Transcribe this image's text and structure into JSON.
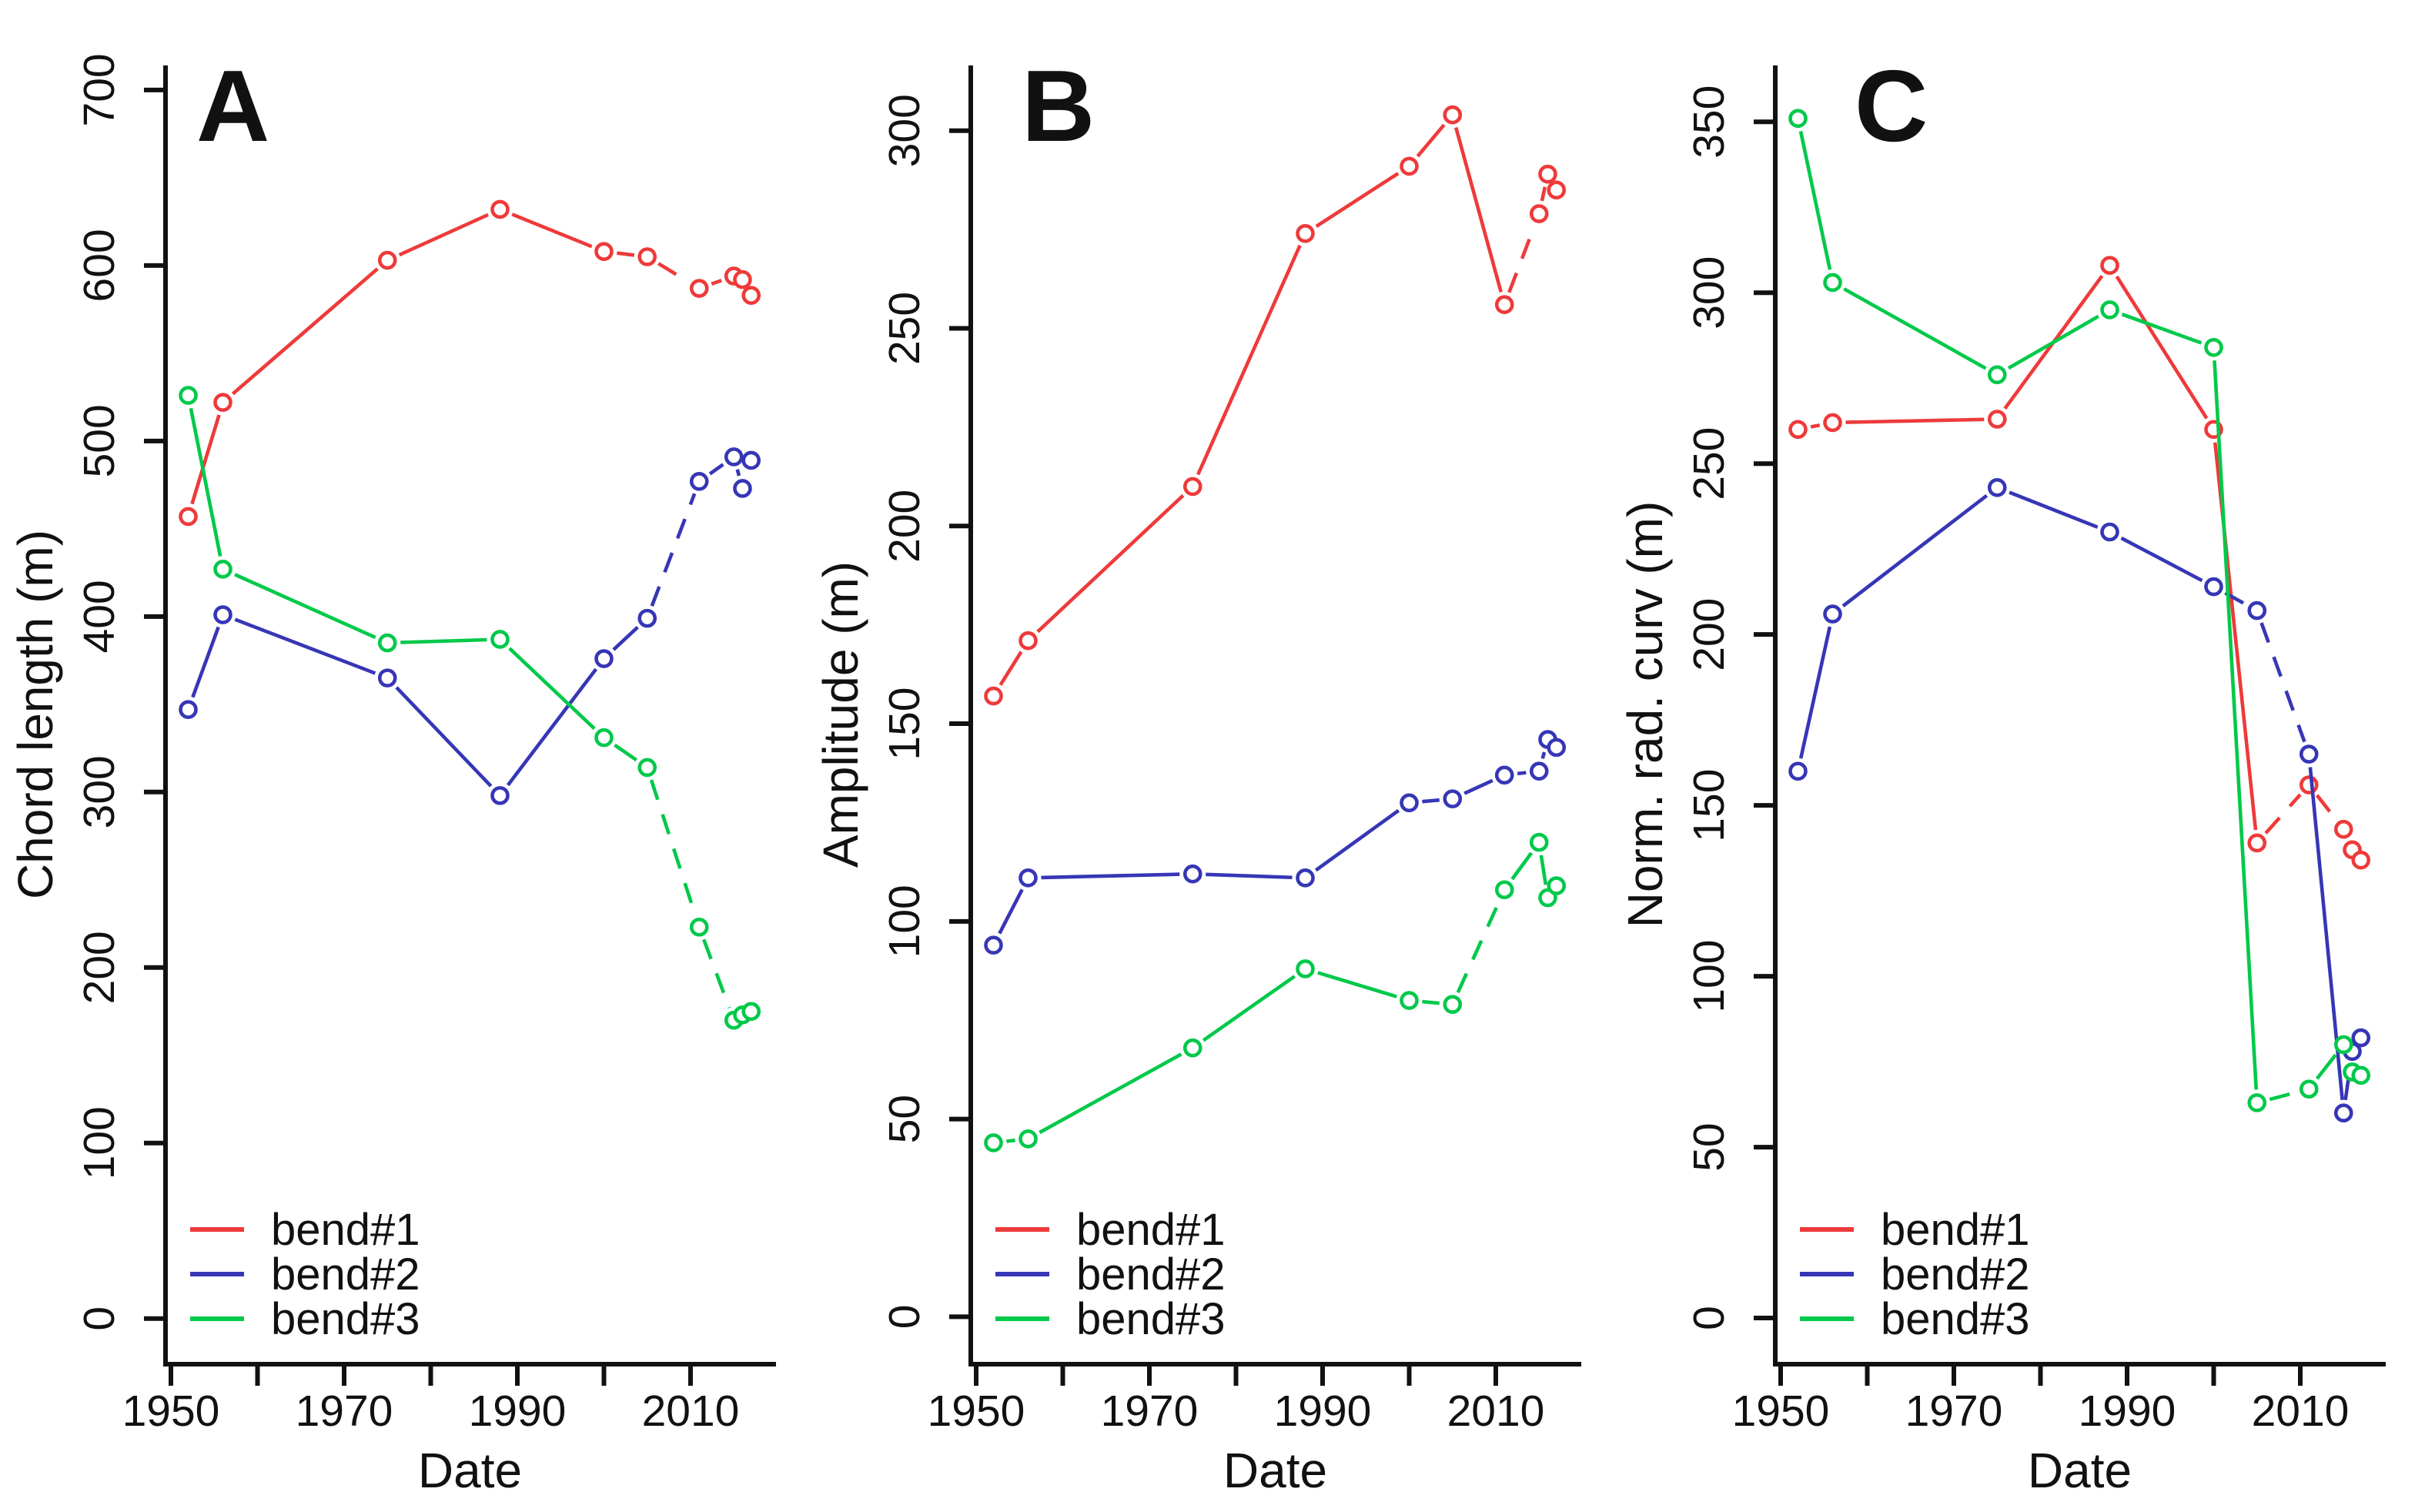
{
  "figure": {
    "background": "#ffffff",
    "text_color": "#111111",
    "panel_count": 3
  },
  "colors": {
    "red": "#ee3a3a",
    "blue": "#3636b6",
    "green": "#00c94a",
    "axis": "#111111"
  },
  "legend": {
    "entries": [
      {
        "label": "bend#1",
        "color": "red"
      },
      {
        "label": "bend#2",
        "color": "blue"
      },
      {
        "label": "bend#3",
        "color": "green"
      }
    ],
    "position": "bottom-left"
  },
  "x_axis": {
    "label": "Date",
    "tick_years": [
      1950,
      1960,
      1970,
      1980,
      1990,
      2000,
      2010
    ],
    "labeled_years": [
      1950,
      1970,
      1990,
      2010
    ]
  },
  "chart_data": [
    {
      "type": "line",
      "panel_label": "A",
      "letter_x": 255,
      "xlabel": "Date",
      "ylabel": "Chord length (m)",
      "x": [
        1952,
        1956,
        1975,
        1988,
        2000,
        2005,
        2011,
        2015,
        2016,
        2017
      ],
      "yticks": [
        0,
        100,
        200,
        300,
        400,
        500,
        600,
        700
      ],
      "ylim": [
        -26,
        714
      ],
      "grid": false,
      "series": [
        {
          "name": "bend#1",
          "color": "red",
          "values": [
            457,
            522,
            603,
            632,
            608,
            605,
            587,
            594,
            592,
            583
          ],
          "dashed_segments": [
            4,
            5,
            6
          ]
        },
        {
          "name": "bend#2",
          "color": "blue",
          "values": [
            347,
            401,
            365,
            298,
            376,
            399,
            477,
            491,
            473,
            489
          ],
          "dashed_segments": [
            5,
            6
          ]
        },
        {
          "name": "bend#3",
          "color": "green",
          "values": [
            526,
            427,
            385,
            387,
            331,
            314,
            223,
            170,
            173,
            175
          ],
          "dashed_segments": [
            5,
            6
          ]
        }
      ]
    },
    {
      "type": "line",
      "panel_label": "B",
      "letter_x": 281,
      "xlabel": "Date",
      "ylabel": "Amplitude (m)",
      "x": [
        1952,
        1956,
        1975,
        1988,
        2000,
        2005,
        2011,
        2015,
        2016,
        2017
      ],
      "yticks": [
        0,
        50,
        100,
        150,
        200,
        250,
        300
      ],
      "ylim": [
        -12,
        316.5
      ],
      "grid": false,
      "series": [
        {
          "name": "bend#1",
          "color": "red",
          "values": [
            157,
            171,
            210,
            274,
            291,
            304,
            256,
            279,
            289,
            285
          ],
          "dashed_segments": [
            6
          ]
        },
        {
          "name": "bend#2",
          "color": "blue",
          "values": [
            94,
            111,
            112,
            111,
            130,
            131,
            137,
            138,
            146,
            144
          ],
          "dashed_segments": [
            4,
            6
          ]
        },
        {
          "name": "bend#3",
          "color": "green",
          "values": [
            44,
            45,
            68,
            88,
            80,
            79,
            108,
            120,
            106,
            109
          ],
          "dashed_segments": [
            0,
            4,
            5
          ]
        }
      ]
    },
    {
      "type": "line",
      "panel_label": "C",
      "letter_x": 318,
      "xlabel": "Date",
      "ylabel": "Norm. rad. curv (m)",
      "x": [
        1952,
        1956,
        1975,
        1988,
        2000,
        2005,
        2011,
        2015,
        2016,
        2017
      ],
      "yticks": [
        0,
        50,
        100,
        150,
        200,
        250,
        300,
        350
      ],
      "ylim": [
        -13.5,
        366.5
      ],
      "grid": false,
      "series": [
        {
          "name": "bend#1",
          "color": "red",
          "values": [
            260,
            262,
            263,
            308,
            260,
            139,
            156,
            143,
            137,
            134
          ],
          "dashed_segments": [
            0,
            5,
            6
          ]
        },
        {
          "name": "bend#2",
          "color": "blue",
          "values": [
            160,
            206,
            243,
            230,
            214,
            207,
            165,
            60,
            78,
            82
          ],
          "dashed_segments": [
            4,
            5
          ]
        },
        {
          "name": "bend#3",
          "color": "green",
          "values": [
            351,
            303,
            276,
            295,
            284,
            63,
            67,
            80,
            72,
            71
          ],
          "dashed_segments": [
            5
          ]
        }
      ]
    }
  ]
}
